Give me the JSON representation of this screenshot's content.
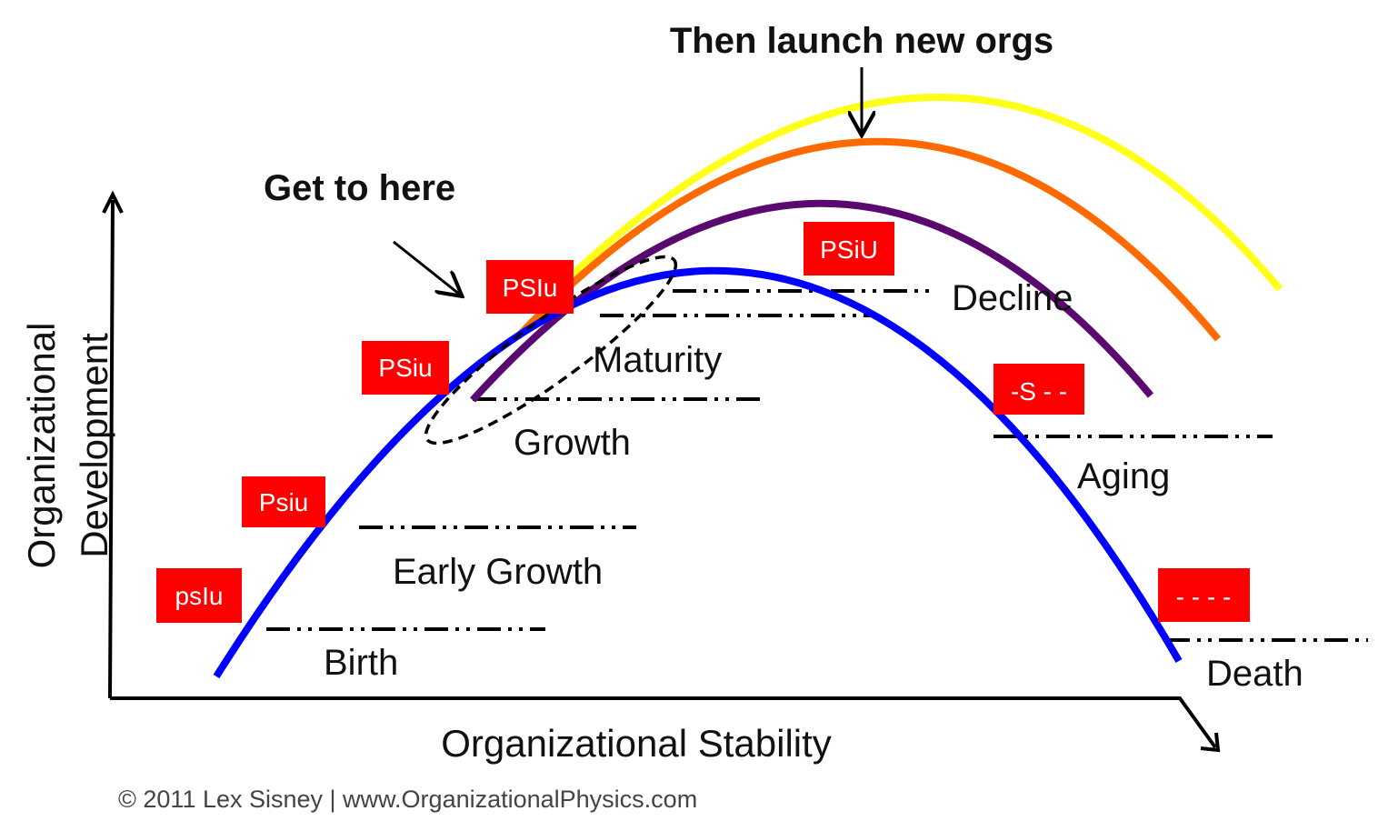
{
  "labels": {
    "callout_top": "Then launch new orgs",
    "callout_left": "Get to here",
    "y_axis": [
      "Organizational",
      "Development"
    ],
    "x_axis": "Organizational Stability",
    "footer": "© 2011 Lex Sisney | www.OrganizationalPhysics.com"
  },
  "stages": [
    "Birth",
    "Early Growth",
    "Growth",
    "Maturity",
    "Decline",
    "Aging",
    "Death"
  ],
  "codes": [
    "psIu",
    "Psiu",
    "PSiu",
    "PSIu",
    "PSiU",
    "-S - -",
    "- - - -"
  ],
  "colors": {
    "badge": "#ff0000",
    "curve_main": "#0000ff",
    "curve_1": "#5a0a6e",
    "curve_2": "#ff6a00",
    "curve_3": "#ffff1a"
  }
}
